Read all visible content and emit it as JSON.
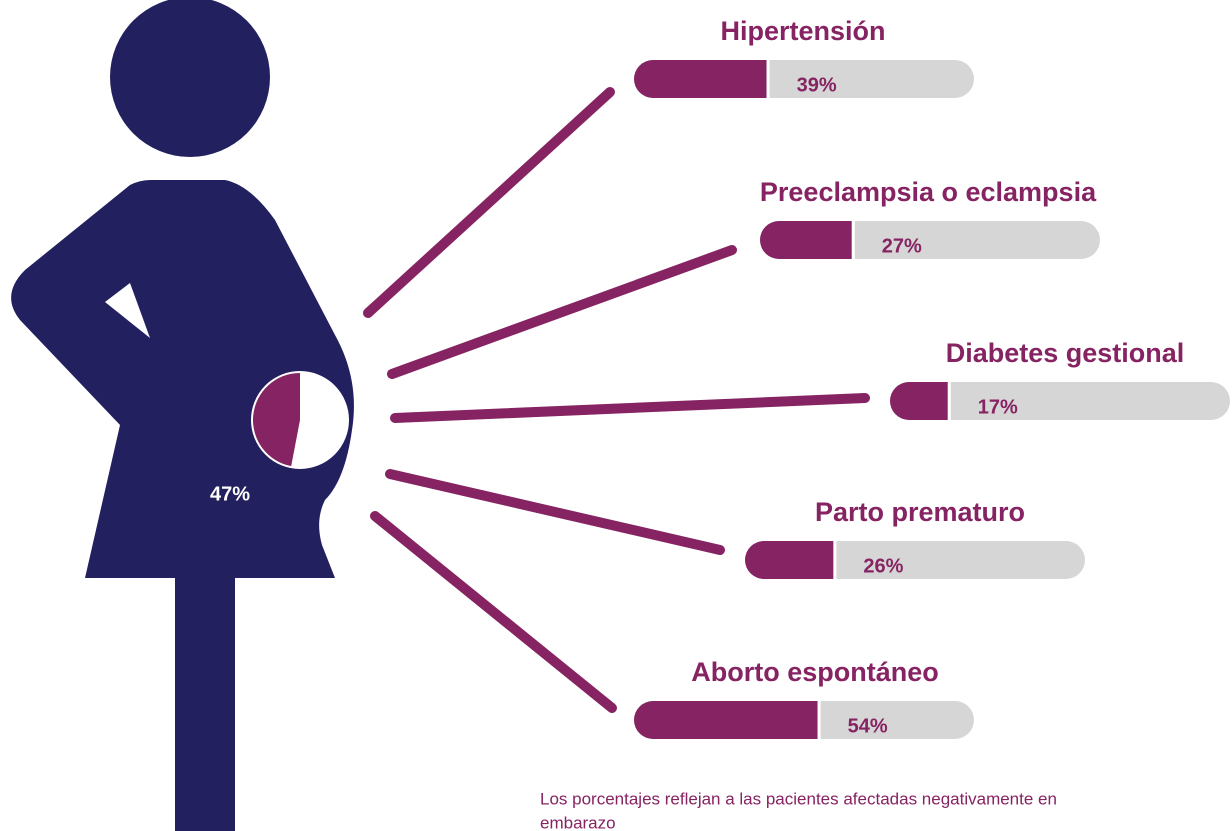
{
  "chart_data": [
    {
      "type": "pie",
      "values": [
        47
      ],
      "value_labels": [
        "47%"
      ],
      "color": "#862362"
    },
    {
      "type": "bar",
      "categories": [
        "Hipertensión",
        "Preeclampsia o eclampsia",
        "Diabetes gestional",
        "Parto prematuro",
        "Aborto espontáneo"
      ],
      "values": [
        39,
        27,
        17,
        26,
        54
      ],
      "value_labels": [
        "39%",
        "27%",
        "17%",
        "26%",
        "54%"
      ],
      "xlim": [
        0,
        100
      ],
      "color": "#862362",
      "track_color": "#d6d6d6",
      "note": [
        "Los porcentajes reflejan a las pacientes afectadas negativamente en",
        "embarazo"
      ]
    }
  ]
}
